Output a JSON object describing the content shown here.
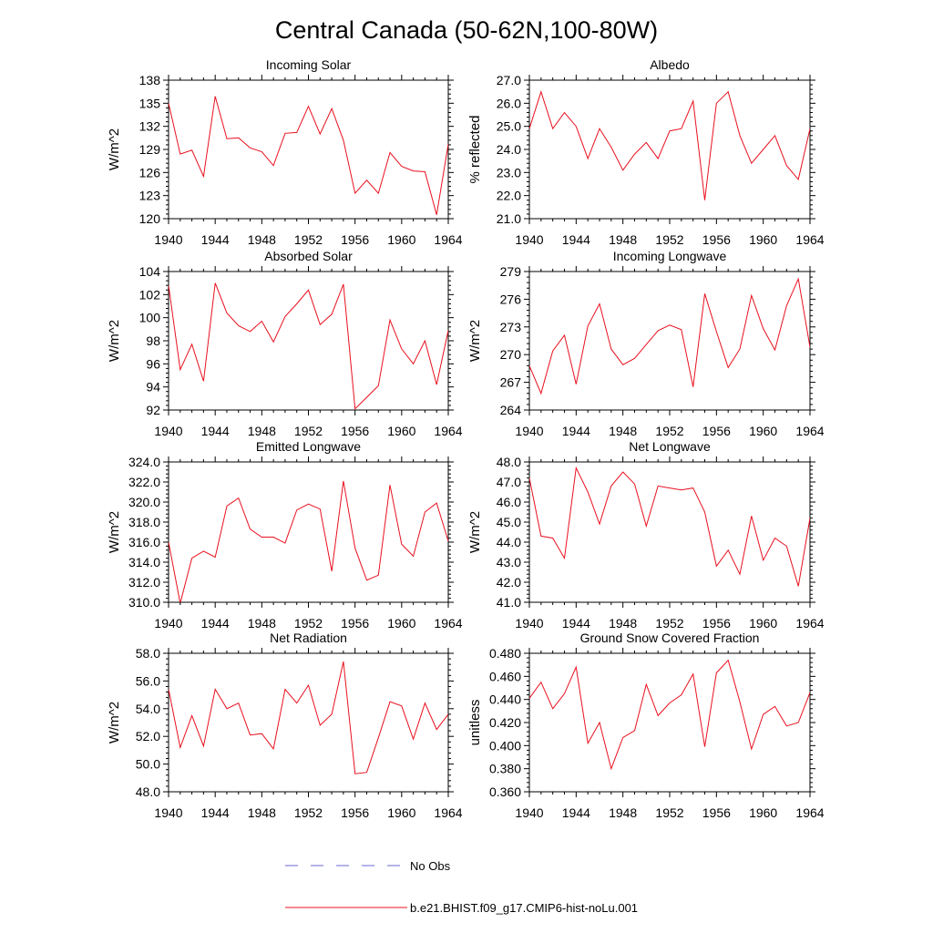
{
  "figure": {
    "title": "Central Canada (50-62N,100-80W)"
  },
  "legend": [
    {
      "label": "No Obs",
      "color": "#6a6ad6",
      "style": "dashed"
    },
    {
      "label": "b.e21.BHIST.f09_g17.CMIP6-hist-noLu.001",
      "color": "#e8101e",
      "style": "solid"
    }
  ],
  "colors": {
    "line": "#e8101e",
    "axis": "#000000"
  },
  "chart_data": [
    {
      "type": "line",
      "title": "Incoming Solar",
      "ylabel": "W/m^2",
      "xlabel": "",
      "xlim": [
        1940,
        1964
      ],
      "ylim": [
        120,
        138
      ],
      "xticks": [
        1940,
        1944,
        1948,
        1952,
        1956,
        1960,
        1964
      ],
      "yticks": [
        120,
        123,
        126,
        129,
        132,
        135,
        138
      ],
      "ytick_labels": [
        "120",
        "123",
        "126",
        "129",
        "132",
        "135",
        "138"
      ],
      "x": [
        1940,
        1941,
        1942,
        1943,
        1944,
        1945,
        1946,
        1947,
        1948,
        1949,
        1950,
        1951,
        1952,
        1953,
        1954,
        1955,
        1956,
        1957,
        1958,
        1959,
        1960,
        1961,
        1962,
        1963,
        1964
      ],
      "series": [
        {
          "values": [
            135.0,
            128.4,
            128.9,
            125.5,
            135.9,
            130.4,
            130.5,
            129.2,
            128.7,
            126.9,
            131.1,
            131.2,
            134.6,
            131.0,
            134.3,
            130.2,
            123.3,
            125.0,
            123.3,
            128.6,
            126.8,
            126.2,
            126.1,
            120.5,
            129.7
          ]
        }
      ]
    },
    {
      "type": "line",
      "title": "Albedo",
      "ylabel": "% reflected",
      "xlabel": "",
      "xlim": [
        1940,
        1964
      ],
      "ylim": [
        21,
        27
      ],
      "xticks": [
        1940,
        1944,
        1948,
        1952,
        1956,
        1960,
        1964
      ],
      "yticks": [
        21,
        22,
        23,
        24,
        25,
        26,
        27
      ],
      "ytick_labels": [
        "21.0",
        "22.0",
        "23.0",
        "24.0",
        "25.0",
        "26.0",
        "27.0"
      ],
      "x": [
        1940,
        1941,
        1942,
        1943,
        1944,
        1945,
        1946,
        1947,
        1948,
        1949,
        1950,
        1951,
        1952,
        1953,
        1954,
        1955,
        1956,
        1957,
        1958,
        1959,
        1960,
        1961,
        1962,
        1963,
        1964
      ],
      "series": [
        {
          "values": [
            24.9,
            26.5,
            24.9,
            25.6,
            25.0,
            23.6,
            24.9,
            24.1,
            23.1,
            23.8,
            24.3,
            23.6,
            24.8,
            24.9,
            26.1,
            21.8,
            26.0,
            26.5,
            24.6,
            23.4,
            24.0,
            24.6,
            23.3,
            22.7,
            24.9
          ]
        }
      ]
    },
    {
      "type": "line",
      "title": "Absorbed Solar",
      "ylabel": "W/m^2",
      "xlabel": "",
      "xlim": [
        1940,
        1964
      ],
      "ylim": [
        92,
        104
      ],
      "xticks": [
        1940,
        1944,
        1948,
        1952,
        1956,
        1960,
        1964
      ],
      "yticks": [
        92,
        94,
        96,
        98,
        100,
        102,
        104
      ],
      "ytick_labels": [
        "92",
        "94",
        "96",
        "98",
        "100",
        "102",
        "104"
      ],
      "x": [
        1940,
        1941,
        1942,
        1943,
        1944,
        1945,
        1946,
        1947,
        1948,
        1949,
        1950,
        1951,
        1952,
        1953,
        1954,
        1955,
        1956,
        1957,
        1958,
        1959,
        1960,
        1961,
        1962,
        1963,
        1964
      ],
      "series": [
        {
          "values": [
            102.8,
            95.5,
            97.7,
            94.5,
            103.0,
            100.4,
            99.3,
            98.8,
            99.7,
            97.9,
            100.1,
            101.2,
            102.4,
            99.4,
            100.3,
            102.9,
            92.1,
            93.1,
            94.1,
            99.8,
            97.3,
            96.0,
            98.0,
            94.2,
            98.9
          ]
        }
      ]
    },
    {
      "type": "line",
      "title": "Incoming Longwave",
      "ylabel": "W/m^2",
      "xlabel": "",
      "xlim": [
        1940,
        1964
      ],
      "ylim": [
        264,
        279
      ],
      "xticks": [
        1940,
        1944,
        1948,
        1952,
        1956,
        1960,
        1964
      ],
      "yticks": [
        264,
        267,
        270,
        273,
        276,
        279
      ],
      "ytick_labels": [
        "264",
        "267",
        "270",
        "273",
        "276",
        "279"
      ],
      "x": [
        1940,
        1941,
        1942,
        1943,
        1944,
        1945,
        1946,
        1947,
        1948,
        1949,
        1950,
        1951,
        1952,
        1953,
        1954,
        1955,
        1956,
        1957,
        1958,
        1959,
        1960,
        1961,
        1962,
        1963,
        1964
      ],
      "series": [
        {
          "values": [
            268.8,
            265.8,
            270.4,
            272.1,
            266.8,
            273.1,
            275.5,
            270.6,
            268.9,
            269.6,
            271.1,
            272.6,
            273.2,
            272.7,
            266.5,
            276.6,
            272.5,
            268.6,
            270.6,
            276.4,
            272.8,
            270.5,
            275.3,
            278.2,
            270.8
          ]
        }
      ]
    },
    {
      "type": "line",
      "title": "Emitted Longwave",
      "ylabel": "W/m^2",
      "xlabel": "",
      "xlim": [
        1940,
        1964
      ],
      "ylim": [
        310,
        324
      ],
      "xticks": [
        1940,
        1944,
        1948,
        1952,
        1956,
        1960,
        1964
      ],
      "yticks": [
        310,
        312,
        314,
        316,
        318,
        320,
        322,
        324
      ],
      "ytick_labels": [
        "310.0",
        "312.0",
        "314.0",
        "316.0",
        "318.0",
        "320.0",
        "322.0",
        "324.0"
      ],
      "x": [
        1940,
        1941,
        1942,
        1943,
        1944,
        1945,
        1946,
        1947,
        1948,
        1949,
        1950,
        1951,
        1952,
        1953,
        1954,
        1955,
        1956,
        1957,
        1958,
        1959,
        1960,
        1961,
        1962,
        1963,
        1964
      ],
      "series": [
        {
          "values": [
            316.0,
            309.9,
            314.4,
            315.1,
            314.5,
            319.6,
            320.4,
            317.3,
            316.5,
            316.5,
            315.9,
            319.2,
            319.8,
            319.3,
            313.1,
            322.1,
            315.4,
            312.2,
            312.7,
            321.7,
            315.8,
            314.6,
            319.0,
            319.9,
            316.1
          ]
        }
      ]
    },
    {
      "type": "line",
      "title": "Net Longwave",
      "ylabel": "W/m^2",
      "xlabel": "",
      "xlim": [
        1940,
        1964
      ],
      "ylim": [
        41,
        48
      ],
      "xticks": [
        1940,
        1944,
        1948,
        1952,
        1956,
        1960,
        1964
      ],
      "yticks": [
        41,
        42,
        43,
        44,
        45,
        46,
        47,
        48
      ],
      "ytick_labels": [
        "41.0",
        "42.0",
        "43.0",
        "44.0",
        "45.0",
        "46.0",
        "47.0",
        "48.0"
      ],
      "x": [
        1940,
        1941,
        1942,
        1943,
        1944,
        1945,
        1946,
        1947,
        1948,
        1949,
        1950,
        1951,
        1952,
        1953,
        1954,
        1955,
        1956,
        1957,
        1958,
        1959,
        1960,
        1961,
        1962,
        1963,
        1964
      ],
      "series": [
        {
          "values": [
            47.2,
            44.3,
            44.2,
            43.2,
            47.7,
            46.5,
            44.9,
            46.8,
            47.5,
            46.9,
            44.8,
            46.8,
            46.7,
            46.6,
            46.7,
            45.5,
            42.8,
            43.6,
            42.4,
            45.3,
            43.1,
            44.2,
            43.8,
            41.8,
            45.2
          ]
        }
      ]
    },
    {
      "type": "line",
      "title": "Net Radiation",
      "ylabel": "W/m^2",
      "xlabel": "",
      "xlim": [
        1940,
        1964
      ],
      "ylim": [
        48,
        58
      ],
      "xticks": [
        1940,
        1944,
        1948,
        1952,
        1956,
        1960,
        1964
      ],
      "yticks": [
        48,
        50,
        52,
        54,
        56,
        58
      ],
      "ytick_labels": [
        "48.0",
        "50.0",
        "52.0",
        "54.0",
        "56.0",
        "58.0"
      ],
      "x": [
        1940,
        1941,
        1942,
        1943,
        1944,
        1945,
        1946,
        1947,
        1948,
        1949,
        1950,
        1951,
        1952,
        1953,
        1954,
        1955,
        1956,
        1957,
        1958,
        1959,
        1960,
        1961,
        1962,
        1963,
        1964
      ],
      "series": [
        {
          "values": [
            55.4,
            51.2,
            53.5,
            51.3,
            55.4,
            54.0,
            54.4,
            52.1,
            52.2,
            51.1,
            55.4,
            54.4,
            55.7,
            52.8,
            53.6,
            57.4,
            49.3,
            49.4,
            51.9,
            54.5,
            54.2,
            51.8,
            54.4,
            52.5,
            53.6
          ]
        }
      ]
    },
    {
      "type": "line",
      "title": "Ground Snow Covered Fraction",
      "ylabel": "unitless",
      "xlabel": "",
      "xlim": [
        1940,
        1964
      ],
      "ylim": [
        0.36,
        0.48
      ],
      "xticks": [
        1940,
        1944,
        1948,
        1952,
        1956,
        1960,
        1964
      ],
      "yticks": [
        0.36,
        0.38,
        0.4,
        0.42,
        0.44,
        0.46,
        0.48
      ],
      "ytick_labels": [
        "0.360",
        "0.380",
        "0.400",
        "0.420",
        "0.440",
        "0.460",
        "0.480"
      ],
      "x": [
        1940,
        1941,
        1942,
        1943,
        1944,
        1945,
        1946,
        1947,
        1948,
        1949,
        1950,
        1951,
        1952,
        1953,
        1954,
        1955,
        1956,
        1957,
        1958,
        1959,
        1960,
        1961,
        1962,
        1963,
        1964
      ],
      "series": [
        {
          "values": [
            0.441,
            0.455,
            0.432,
            0.445,
            0.468,
            0.402,
            0.42,
            0.38,
            0.407,
            0.413,
            0.453,
            0.426,
            0.437,
            0.444,
            0.462,
            0.399,
            0.463,
            0.474,
            0.438,
            0.397,
            0.427,
            0.434,
            0.417,
            0.42,
            0.446
          ]
        }
      ]
    }
  ]
}
